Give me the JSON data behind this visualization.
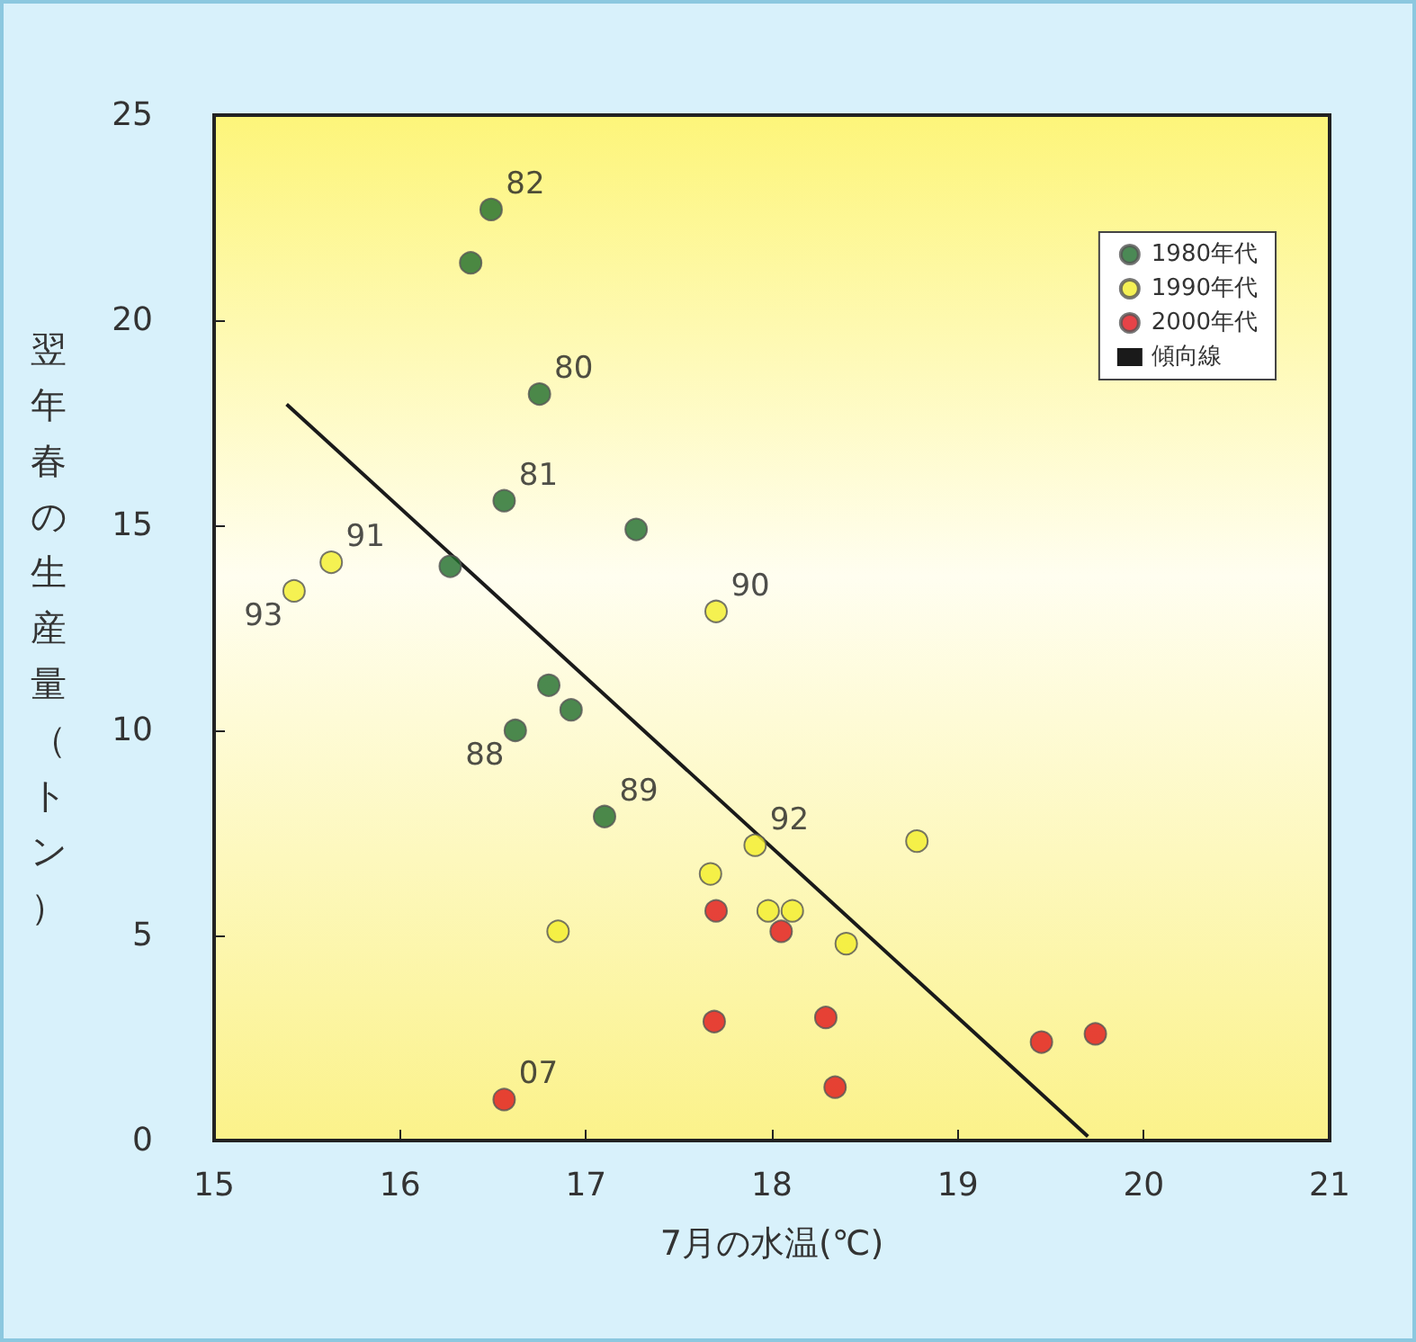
{
  "chart_data": {
    "type": "scatter",
    "xlabel": "7月の水温(℃)",
    "ylabel": "翌年春の生産量（トン）",
    "xlim": [
      15,
      21
    ],
    "xticks": [
      15,
      16,
      17,
      18,
      19,
      20,
      21
    ],
    "ylim": [
      0,
      25
    ],
    "yticks": [
      0,
      5,
      10,
      15,
      20,
      25
    ],
    "grid": false,
    "legend": "top right",
    "marker": "circle",
    "series": [
      {
        "name": "1980年代",
        "color": "#1e6b2a",
        "x": [
          16.49,
          16.38,
          16.75,
          16.56,
          17.27,
          16.27,
          16.8,
          16.92,
          16.62,
          17.1
        ],
        "values": [
          22.7,
          21.4,
          18.2,
          15.6,
          14.9,
          14.0,
          11.1,
          10.5,
          10.0,
          7.9
        ]
      },
      {
        "name": "1990年代",
        "color": "#f2ee2a",
        "x": [
          15.43,
          15.63,
          17.7,
          17.91,
          17.67,
          17.98,
          18.11,
          18.4,
          18.78,
          16.85
        ],
        "values": [
          13.4,
          14.1,
          12.9,
          7.2,
          6.5,
          5.6,
          5.6,
          4.8,
          7.3,
          5.1
        ]
      },
      {
        "name": "2000年代",
        "color": "#e0141a",
        "x": [
          17.7,
          18.05,
          17.69,
          18.29,
          18.34,
          19.45,
          19.74,
          16.56
        ],
        "values": [
          5.6,
          5.1,
          2.9,
          3.0,
          1.3,
          2.4,
          2.6,
          1.0
        ]
      },
      {
        "name": "傾向線",
        "type": "line",
        "color": "#1a1a1a",
        "x": [
          15.39,
          19.7
        ],
        "values": [
          17.95,
          0.1
        ],
        "marker": "none",
        "line_style": "solid"
      }
    ],
    "annotations": [
      {
        "text": "82",
        "x": 16.49,
        "y": 22.7
      },
      {
        "text": "80",
        "x": 16.75,
        "y": 18.2
      },
      {
        "text": "81",
        "x": 16.56,
        "y": 15.6
      },
      {
        "text": "91",
        "x": 15.63,
        "y": 14.1
      },
      {
        "text": "93",
        "x": 15.43,
        "y": 13.4
      },
      {
        "text": "90",
        "x": 17.7,
        "y": 12.9
      },
      {
        "text": "88",
        "x": 16.62,
        "y": 10.0
      },
      {
        "text": "89",
        "x": 17.1,
        "y": 7.9
      },
      {
        "text": "92",
        "x": 17.91,
        "y": 7.2
      },
      {
        "text": "07",
        "x": 16.56,
        "y": 1.0
      }
    ]
  }
}
